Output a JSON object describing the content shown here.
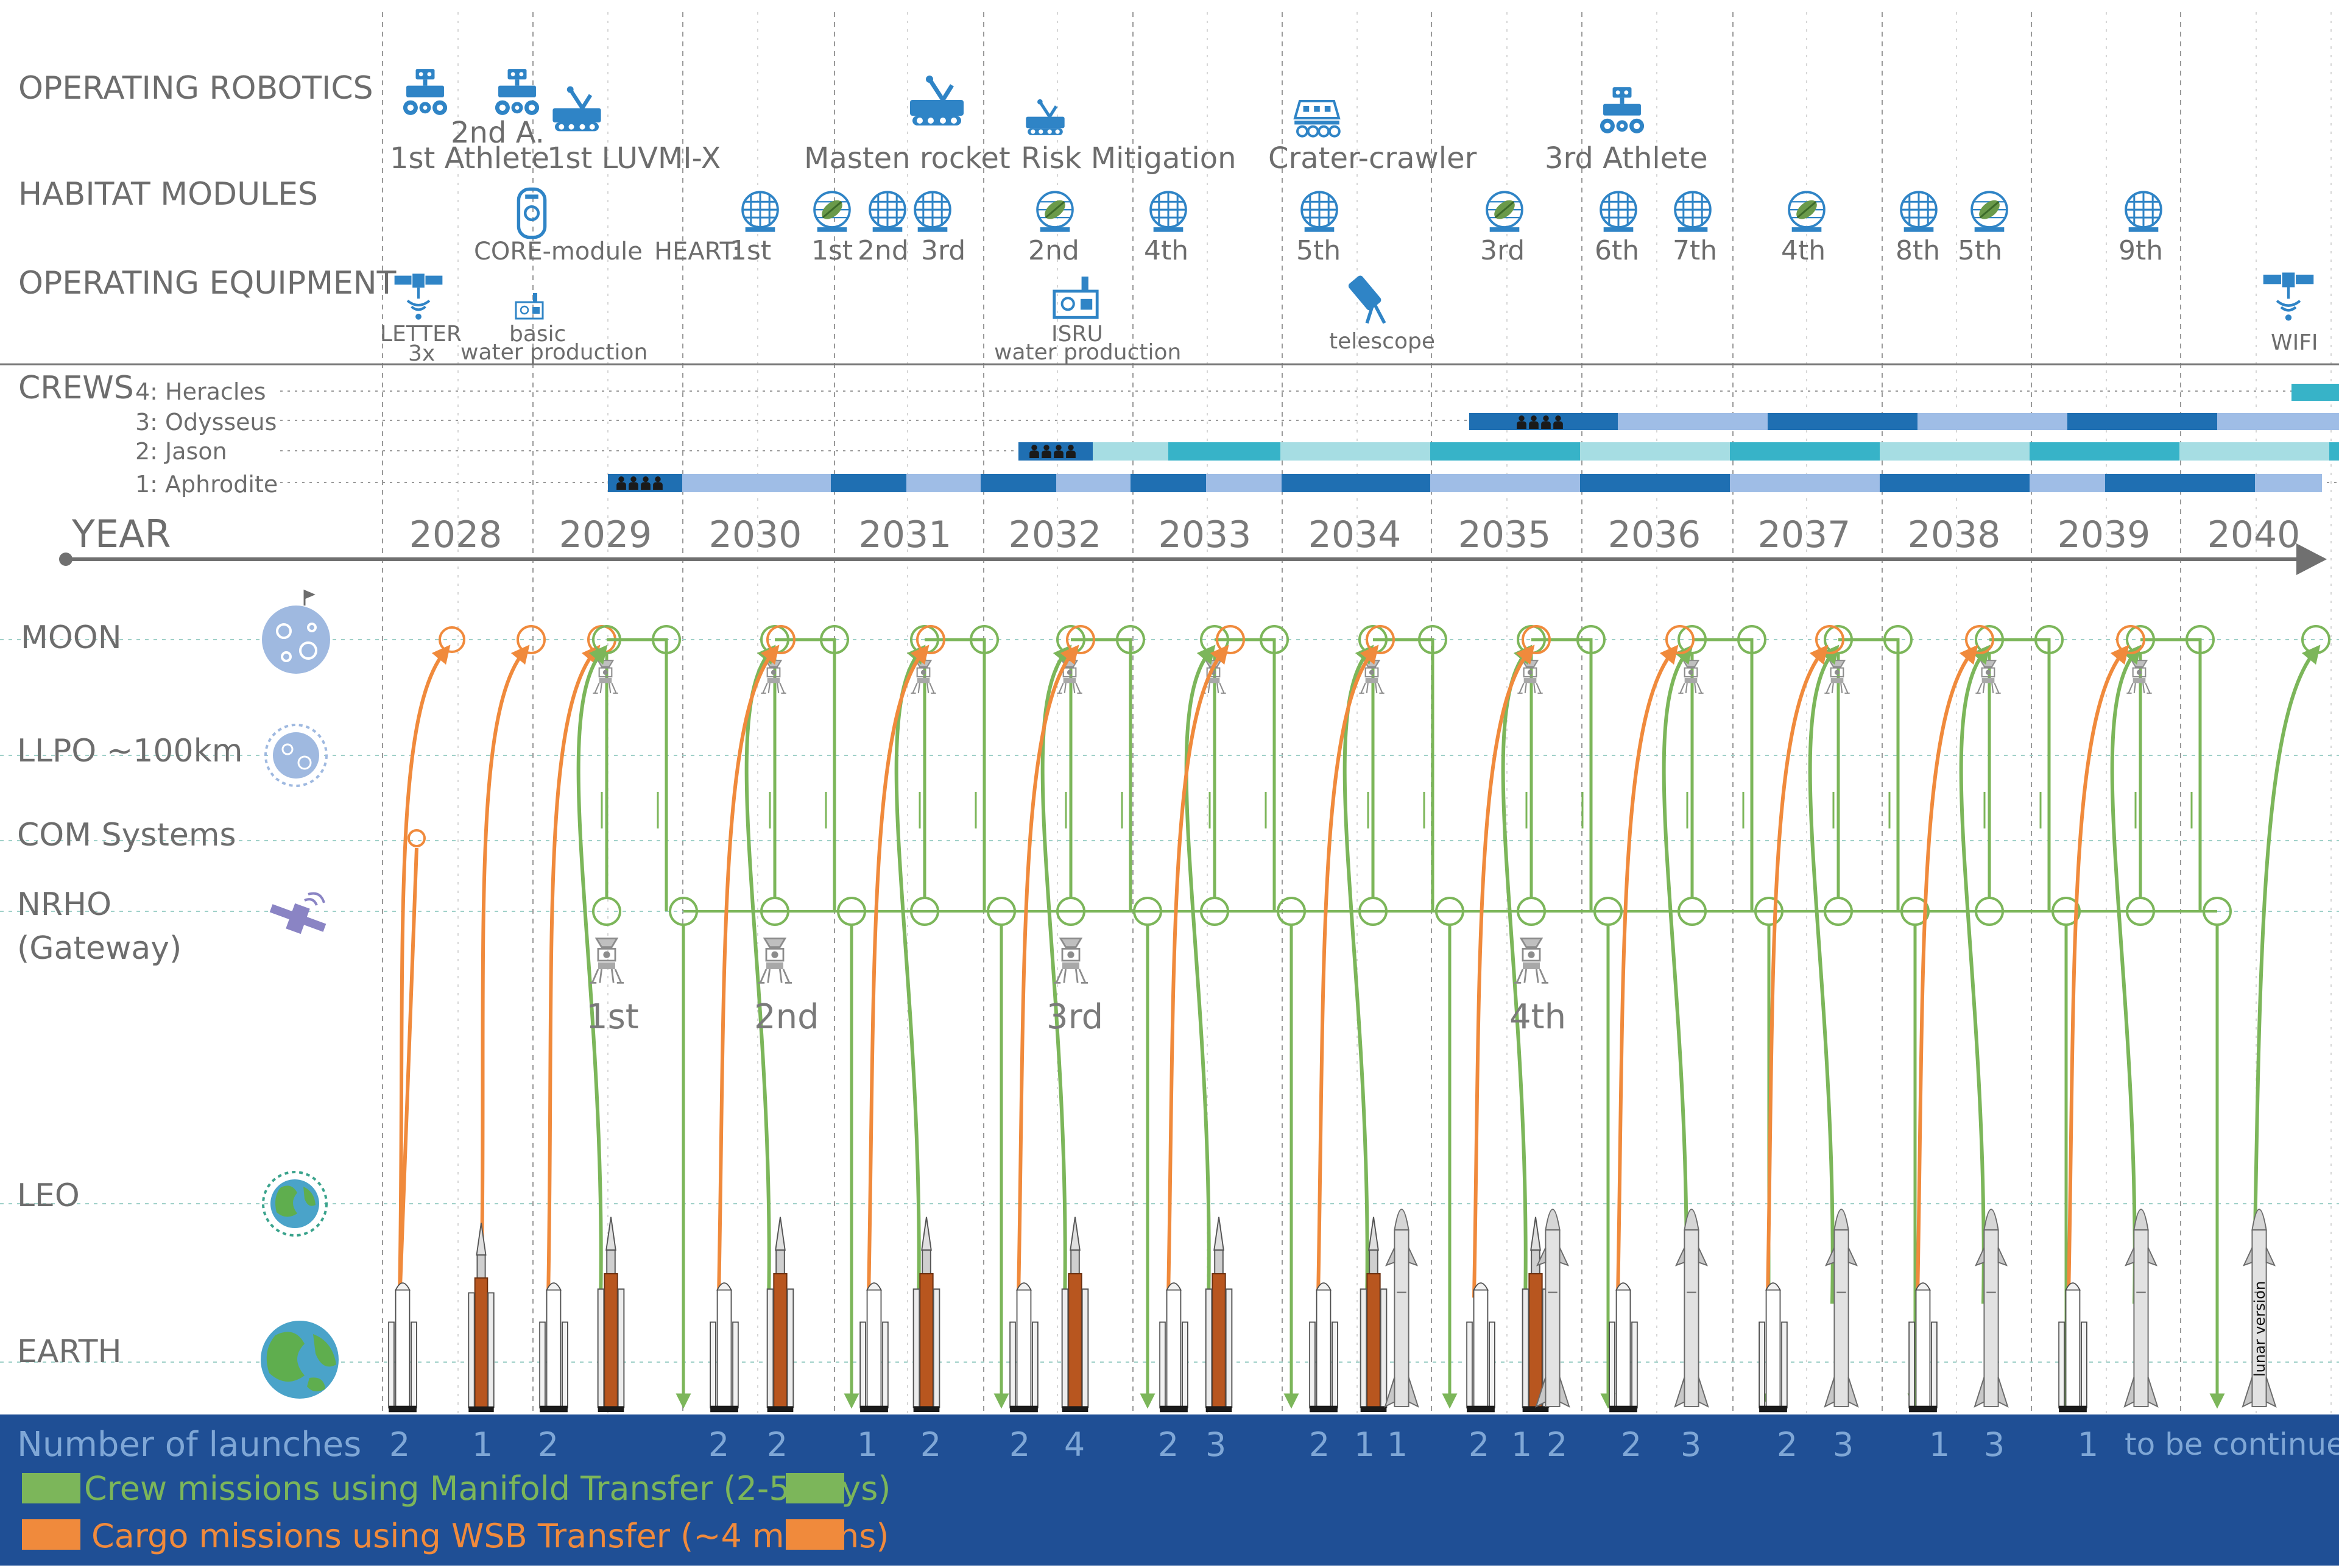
{
  "rows": {
    "robotics": "OPERATING ROBOTICS",
    "habitat": "HABITAT MODULES",
    "equipment": "OPERATING EQUIPMENT",
    "crews": "CREWS",
    "year": "YEAR",
    "moon": "MOON",
    "llpo": "LLPO ~100km",
    "com": "COM Systems",
    "nrho": "NRHO",
    "nrho_sub": "(Gateway)",
    "leo": "LEO",
    "earth": "EARTH"
  },
  "robotics_labels": [
    "1st Athlete",
    "2nd A.",
    "1st LUVMI-X",
    "Masten rocket",
    "Risk Mitigation",
    "Crater-crawler",
    "3rd Athlete"
  ],
  "habitat_labels": [
    "CORE-module",
    "HEART:",
    "1st",
    "1st",
    "2nd",
    "3rd",
    "2nd",
    "4th",
    "5th",
    "3rd",
    "6th",
    "7th",
    "4th",
    "8th",
    "5th",
    "9th"
  ],
  "equipment_labels": [
    "LETTER",
    "3x",
    "basic",
    "water production",
    "ISRU",
    "water production",
    "telescope",
    "WIFI"
  ],
  "crew_names": [
    "4: Heracles",
    "3: Odysseus",
    "2: Jason",
    "1: Aphrodite"
  ],
  "years": [
    "2028",
    "2029",
    "2030",
    "2031",
    "2032",
    "2033",
    "2034",
    "2035",
    "2036",
    "2037",
    "2038",
    "2039",
    "2040"
  ],
  "lander_labels": [
    "1st",
    "2nd",
    "3rd",
    "4th"
  ],
  "rocket_text": "lunar version",
  "launches": {
    "title": "Number of launches",
    "counts": [
      "2",
      "1",
      "2",
      "2",
      "2",
      "1",
      "2",
      "2",
      "4",
      "2",
      "3",
      "2",
      "1",
      "1",
      "2",
      "1",
      "2",
      "2",
      "3",
      "2",
      "3",
      "1",
      "3",
      "1"
    ],
    "tail": "to be continued"
  },
  "legend": {
    "crew": "Crew missions using Manifold Transfer (2-5 days)",
    "cargo": "Cargo missions using WSB Transfer (~4 months)"
  },
  "colors": {
    "accent": "#2e8bc9",
    "icon": "#2f84c6",
    "crew_green": "#7cb65a",
    "cargo_orange": "#f08a3c",
    "footer_blue": "#1f4f95",
    "grey_text": "#6d6d6d"
  }
}
